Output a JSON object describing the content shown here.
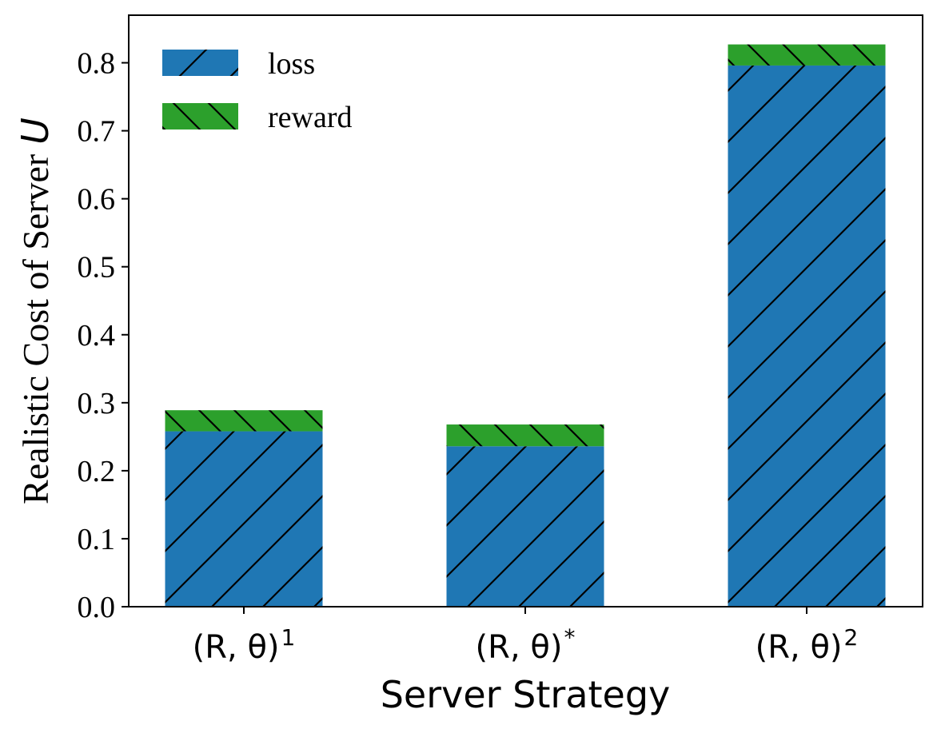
{
  "chart_data": {
    "type": "bar",
    "stacked": true,
    "categories": [
      "(R,θ)¹",
      "(R,θ)*",
      "(R,θ)²"
    ],
    "category_parts": [
      {
        "base": "(R, θ)",
        "sup": "1"
      },
      {
        "base": "(R, θ)",
        "sup": "*"
      },
      {
        "base": "(R, θ)",
        "sup": "2"
      }
    ],
    "series": [
      {
        "name": "loss",
        "values": [
          0.258,
          0.236,
          0.796
        ],
        "color": "#1f77b4",
        "hatch": "/"
      },
      {
        "name": "reward",
        "values": [
          0.031,
          0.032,
          0.031
        ],
        "color": "#2ca02c",
        "hatch": "\\"
      }
    ],
    "xlabel": "Server Strategy",
    "ylabel_text": "Realistic Cost of Server",
    "ylabel_symbol": "U",
    "yticks": [
      "0.0",
      "0.1",
      "0.2",
      "0.3",
      "0.4",
      "0.5",
      "0.6",
      "0.7",
      "0.8"
    ],
    "ylim": [
      0,
      0.87
    ],
    "grid": false,
    "legend_position": "top-left"
  }
}
